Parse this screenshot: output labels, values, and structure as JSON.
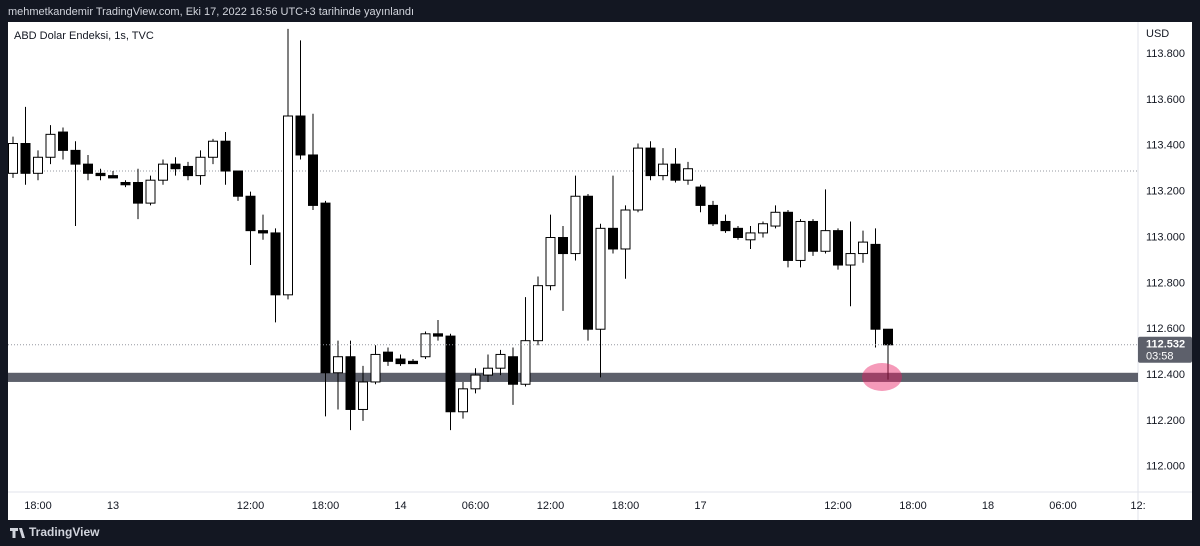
{
  "header": "mehmetkandemir TradingView.com, Eki 17, 2022 16:56 UTC+3 tarihinde yayınlandı",
  "footer_brand": "TradingView",
  "chart_data": {
    "type": "candlestick",
    "title": "ABD Dolar Endeksi, 1s, TVC",
    "y_axis_label": "USD",
    "countdown": "03:58",
    "categories": [
      null,
      null,
      "18:00",
      null,
      null,
      null,
      null,
      null,
      "13",
      null,
      null,
      null,
      null,
      null,
      null,
      null,
      null,
      null,
      null,
      "12:00",
      null,
      null,
      null,
      null,
      null,
      "18:00",
      null,
      null,
      null,
      null,
      null,
      "14",
      null,
      null,
      null,
      null,
      null,
      "06:00",
      null,
      null,
      null,
      null,
      null,
      "12:00",
      null,
      null,
      null,
      null,
      null,
      "18:00",
      null,
      null,
      null,
      null,
      null,
      "17",
      null,
      null,
      null,
      null,
      null,
      null,
      null,
      null,
      null,
      null,
      "12:00",
      null,
      null,
      null,
      null,
      null,
      "18:00",
      null,
      null,
      null,
      null,
      null,
      "18",
      null,
      null,
      null,
      null,
      null,
      "06:00",
      null,
      null,
      null,
      null,
      null,
      "12:"
    ],
    "open": [
      113.28,
      113.41,
      113.28,
      113.35,
      113.46,
      113.38,
      113.32,
      113.28,
      113.27,
      113.24,
      113.24,
      113.15,
      113.25,
      113.32,
      113.31,
      113.27,
      113.35,
      113.42,
      113.29,
      113.18,
      113.03,
      113.02,
      112.75,
      113.53,
      113.36,
      113.15,
      112.41,
      112.48,
      112.25,
      112.37,
      112.5,
      112.47,
      112.46,
      112.48,
      112.58,
      112.57,
      112.24,
      112.34,
      112.4,
      112.43,
      112.48,
      112.36,
      112.55,
      112.79,
      113.0,
      112.93,
      113.18,
      112.6,
      113.04,
      112.95,
      113.12,
      113.39,
      113.27,
      113.32,
      113.25,
      113.22,
      113.14,
      113.07,
      113.04,
      112.99,
      113.02,
      113.05,
      113.11,
      112.9,
      113.07,
      112.94,
      113.03,
      112.88,
      112.93,
      112.97,
      112.6,
      null,
      null,
      null,
      null,
      null,
      null,
      null,
      null,
      null,
      null,
      null,
      null,
      null,
      null,
      null,
      null,
      null,
      null,
      null,
      null
    ],
    "high": [
      113.44,
      113.57,
      113.38,
      113.49,
      113.48,
      113.42,
      113.36,
      113.3,
      113.29,
      113.25,
      113.3,
      113.27,
      113.34,
      113.35,
      113.33,
      113.38,
      113.43,
      113.46,
      113.29,
      113.2,
      113.1,
      113.04,
      113.91,
      113.86,
      113.54,
      113.16,
      112.55,
      112.55,
      112.44,
      112.53,
      112.52,
      112.49,
      112.47,
      112.59,
      112.64,
      112.58,
      112.37,
      112.43,
      112.49,
      112.51,
      112.52,
      112.74,
      112.83,
      113.1,
      113.05,
      113.27,
      113.19,
      113.06,
      113.27,
      113.14,
      113.41,
      113.42,
      113.39,
      113.39,
      113.33,
      113.23,
      113.16,
      113.1,
      113.05,
      113.05,
      113.07,
      113.14,
      113.12,
      113.08,
      113.08,
      113.21,
      113.04,
      113.07,
      113.03,
      113.04,
      112.6,
      null,
      null,
      null,
      null,
      null,
      null,
      null,
      null,
      null,
      null,
      null,
      null,
      null,
      null,
      null,
      null,
      null,
      null,
      null,
      null
    ],
    "low": [
      113.26,
      113.23,
      113.25,
      113.32,
      113.34,
      113.05,
      113.25,
      113.25,
      113.26,
      113.22,
      113.08,
      113.14,
      113.23,
      113.27,
      113.25,
      113.23,
      113.32,
      113.23,
      113.16,
      112.88,
      112.99,
      112.63,
      112.73,
      113.34,
      113.12,
      112.22,
      112.25,
      112.16,
      112.2,
      112.36,
      112.44,
      112.44,
      112.45,
      112.47,
      112.55,
      112.16,
      112.21,
      112.32,
      112.37,
      112.4,
      112.27,
      112.35,
      112.53,
      112.77,
      112.68,
      112.9,
      112.55,
      112.39,
      112.93,
      112.82,
      113.11,
      113.25,
      113.25,
      113.24,
      113.23,
      113.11,
      113.05,
      113.02,
      112.99,
      112.95,
      113.0,
      113.04,
      112.87,
      112.87,
      112.92,
      112.93,
      112.86,
      112.7,
      112.89,
      112.52,
      112.38,
      null,
      null,
      null,
      null,
      null,
      null,
      null,
      null,
      null,
      null,
      null,
      null,
      null,
      null,
      null,
      null,
      null,
      null,
      null,
      null
    ],
    "close": [
      113.41,
      113.28,
      113.35,
      113.45,
      113.38,
      113.32,
      113.28,
      113.27,
      113.26,
      113.23,
      113.15,
      113.25,
      113.32,
      113.3,
      113.27,
      113.35,
      113.42,
      113.29,
      113.18,
      113.03,
      113.02,
      112.75,
      113.53,
      113.36,
      113.14,
      112.41,
      112.48,
      112.25,
      112.37,
      112.49,
      112.46,
      112.45,
      112.45,
      112.58,
      112.57,
      112.24,
      112.34,
      112.4,
      112.43,
      112.49,
      112.36,
      112.55,
      112.79,
      113.0,
      112.93,
      113.18,
      112.6,
      113.04,
      112.95,
      113.12,
      113.39,
      113.27,
      113.32,
      113.25,
      113.3,
      113.14,
      113.06,
      113.03,
      113.0,
      113.02,
      113.06,
      113.11,
      112.9,
      113.07,
      112.94,
      113.03,
      112.88,
      112.93,
      112.98,
      112.6,
      112.532,
      null,
      null,
      null,
      null,
      null,
      null,
      null,
      null,
      null,
      null,
      null,
      null,
      null,
      null,
      null,
      null,
      null,
      null,
      null,
      null
    ],
    "up_color": "#ffffff",
    "down_color": "#000000",
    "wick_color": "#000000",
    "zone": [
      112.37,
      112.41
    ],
    "zone_color": "#5d606b",
    "reference_line": 113.29,
    "last_price_color": "#5d606b",
    "ylim": [
      111.89,
      113.94
    ],
    "yticks": [
      {
        "value": 112.0,
        "label": "112.000"
      },
      {
        "value": 112.2,
        "label": "112.200"
      },
      {
        "value": 112.4,
        "label": "112.400"
      },
      {
        "value": 112.6,
        "label": "112.600"
      },
      {
        "value": 112.8,
        "label": "112.800"
      },
      {
        "value": 113.0,
        "label": "113.000"
      },
      {
        "value": 113.2,
        "label": "113.200"
      },
      {
        "value": 113.4,
        "label": "113.400"
      },
      {
        "value": 113.6,
        "label": "113.600"
      },
      {
        "value": 113.8,
        "label": "113.800"
      }
    ],
    "grid": false
  }
}
